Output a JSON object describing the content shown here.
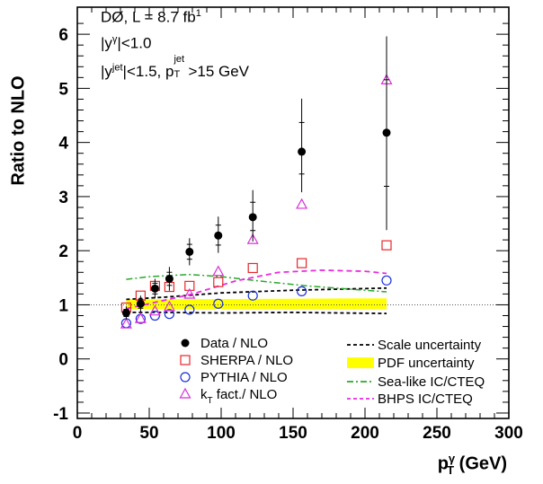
{
  "chart_data": {
    "type": "scatter",
    "ylabel": "Ratio to NLO",
    "xlabel": {
      "p": "p",
      "sup": "γ",
      "sub": "T",
      "unit": "(GeV)"
    },
    "xlim": [
      0,
      300
    ],
    "ylim": [
      -1.1,
      6.5
    ],
    "xticks": [
      0,
      50,
      100,
      150,
      200,
      250,
      300
    ],
    "yticks": [
      -1,
      0,
      1,
      2,
      3,
      4,
      5,
      6
    ],
    "reference_line": 1,
    "annotations": [
      {
        "text": "DØ, L = 8.7 fb",
        "sup": "1"
      },
      {
        "text": "|y",
        "sup": "γ",
        "tail": "|<1.0"
      },
      {
        "text": "|y",
        "sup": "jet",
        "mid": "|<1.5, p",
        "sup2": "jet",
        "sub2": "T",
        "tail": ">15 GeV"
      }
    ],
    "series": [
      {
        "name": "Data / NLO",
        "marker": "filled-circle",
        "color": "#000000",
        "x": [
          34,
          44,
          54,
          64,
          78,
          98,
          122,
          156,
          215
        ],
        "y": [
          0.85,
          1.02,
          1.3,
          1.48,
          1.98,
          2.28,
          2.62,
          3.83,
          4.18
        ],
        "err_low": [
          0.12,
          0.15,
          0.18,
          0.22,
          0.25,
          0.32,
          0.45,
          0.75,
          1.8
        ],
        "err_high": [
          0.12,
          0.15,
          0.18,
          0.22,
          0.25,
          0.35,
          0.5,
          0.98,
          1.78
        ]
      },
      {
        "name": "SHERPA / NLO",
        "marker": "open-square",
        "color": "#e8262a",
        "x": [
          34,
          44,
          54,
          64,
          78,
          98,
          122,
          156,
          215
        ],
        "y": [
          0.95,
          1.17,
          1.35,
          1.33,
          1.35,
          1.42,
          1.68,
          1.77,
          2.1
        ]
      },
      {
        "name": "PYTHIA / NLO",
        "marker": "open-circle",
        "color": "#1a2ee0",
        "x": [
          34,
          44,
          54,
          64,
          78,
          98,
          122,
          156,
          215
        ],
        "y": [
          0.66,
          0.74,
          0.8,
          0.83,
          0.91,
          1.02,
          1.17,
          1.25,
          1.45
        ]
      },
      {
        "name": "k",
        "name_sub": "T",
        "name_tail": " fact./ NLO",
        "marker": "open-triangle",
        "color": "#d82fd8",
        "x": [
          34,
          44,
          54,
          64,
          78,
          98,
          122,
          156,
          215
        ],
        "y": [
          0.64,
          0.74,
          0.88,
          0.96,
          1.19,
          1.61,
          2.2,
          2.85,
          5.15
        ]
      }
    ],
    "curves": [
      {
        "name": "Scale uncertainty",
        "style": "dashed",
        "color": "#000000",
        "upper": {
          "x": [
            34,
            60,
            100,
            150,
            215
          ],
          "y": [
            1.1,
            1.14,
            1.22,
            1.27,
            1.31
          ]
        },
        "lower": {
          "x": [
            34,
            60,
            100,
            150,
            215
          ],
          "y": [
            0.86,
            0.86,
            0.85,
            0.86,
            0.84
          ]
        }
      },
      {
        "name": "PDF uncertainty",
        "style": "band",
        "color": "#ffff00",
        "band": {
          "x": [
            34,
            215
          ],
          "lo": [
            0.92,
            0.92
          ],
          "hi": [
            1.1,
            1.12
          ]
        }
      },
      {
        "name": "Sea-like IC/CTEQ",
        "style": "dashdot",
        "color": "#2aa82a",
        "x": [
          34,
          50,
          78,
          100,
          130,
          160,
          190,
          215
        ],
        "y": [
          1.47,
          1.52,
          1.56,
          1.52,
          1.43,
          1.35,
          1.29,
          1.24
        ]
      },
      {
        "name": "BHPS IC/CTEQ",
        "style": "dashed",
        "color": "#ea2ae0",
        "x": [
          34,
          50,
          80,
          110,
          140,
          170,
          200,
          215
        ],
        "y": [
          0.93,
          1.02,
          1.2,
          1.44,
          1.6,
          1.64,
          1.62,
          1.58
        ]
      }
    ]
  }
}
